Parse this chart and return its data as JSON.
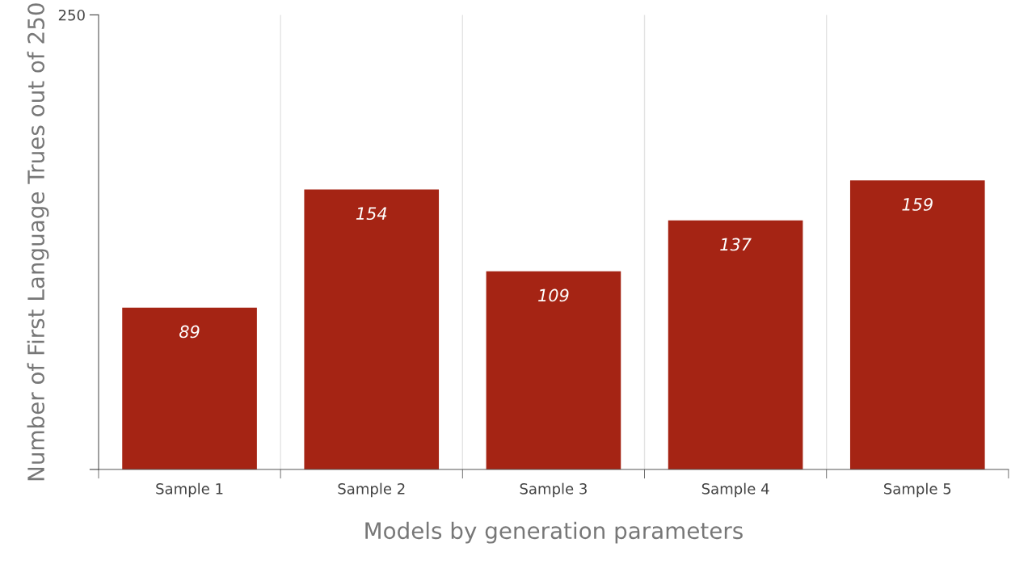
{
  "chart_data": {
    "type": "bar",
    "xlabel": "Models by generation parameters",
    "ylabel": "Number of First Language Trues out of 250",
    "categories": [
      "Sample 1",
      "Sample 2",
      "Sample 3",
      "Sample 4",
      "Sample 5"
    ],
    "values": [
      89,
      154,
      109,
      137,
      159
    ],
    "color": "#a52414",
    "ylim": [
      0,
      250
    ],
    "yticks": [
      {
        "value": 0,
        "label": null
      },
      250
    ],
    "grid": "x",
    "data_labels": true
  }
}
